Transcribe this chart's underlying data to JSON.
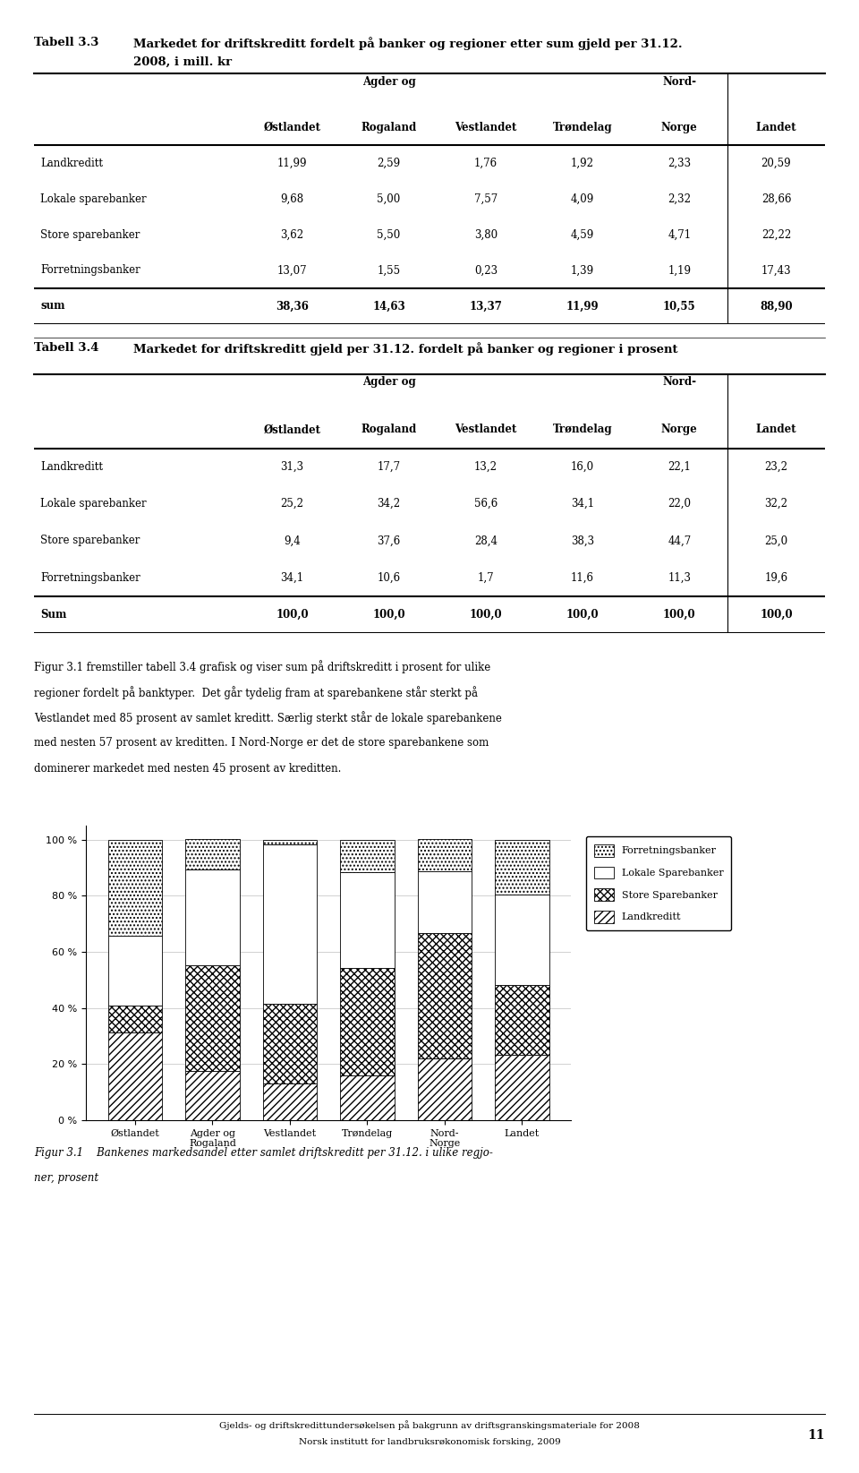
{
  "title1": "Tabell 3.3",
  "title1_desc": "Markedet for driftskreditt fordelt på banker og regioner etter sum gjeld per 31.12.",
  "title1_desc2": "2008, i mill. kr",
  "title2": "Tabell 3.4",
  "title2_desc": "Markedet for driftskreditt gjeld per 31.12. fordelt på banker og regioner i prosent",
  "rows_t1": [
    [
      "Landkreditt",
      "11,99",
      "2,59",
      "1,76",
      "1,92",
      "2,33",
      "20,59"
    ],
    [
      "Lokale sparebanker",
      "9,68",
      "5,00",
      "7,57",
      "4,09",
      "2,32",
      "28,66"
    ],
    [
      "Store sparebanker",
      "3,62",
      "5,50",
      "3,80",
      "4,59",
      "4,71",
      "22,22"
    ],
    [
      "Forretningsbanker",
      "13,07",
      "1,55",
      "0,23",
      "1,39",
      "1,19",
      "17,43"
    ],
    [
      "sum",
      "38,36",
      "14,63",
      "13,37",
      "11,99",
      "10,55",
      "88,90"
    ]
  ],
  "rows_t2": [
    [
      "Landkreditt",
      "31,3",
      "17,7",
      "13,2",
      "16,0",
      "22,1",
      "23,2"
    ],
    [
      "Lokale sparebanker",
      "25,2",
      "34,2",
      "56,6",
      "34,1",
      "22,0",
      "32,2"
    ],
    [
      "Store sparebanker",
      "9,4",
      "37,6",
      "28,4",
      "38,3",
      "44,7",
      "25,0"
    ],
    [
      "Forretningsbanker",
      "34,1",
      "10,6",
      "1,7",
      "11,6",
      "11,3",
      "19,6"
    ],
    [
      "Sum",
      "100,0",
      "100,0",
      "100,0",
      "100,0",
      "100,0",
      "100,0"
    ]
  ],
  "body_lines": [
    "Figur 3.1 fremstiller tabell 3.4 grafisk og viser sum på driftskreditt i prosent for ulike",
    "regioner fordelt på banktyper.  Det går tydelig fram at sparebankene står sterkt på",
    "Vestlandet med 85 prosent av samlet kreditt. Særlig sterkt står de lokale sparebankene",
    "med nesten 57 prosent av kreditten. I Nord-Norge er det de store sparebankene som",
    "dominerer markedet med nesten 45 prosent av kreditten."
  ],
  "chart_categories": [
    "Østlandet",
    "Agder og\nRogaland",
    "Vestlandet",
    "Trøndelag",
    "Nord-\nNorge",
    "Landet"
  ],
  "landkreditt": [
    31.3,
    17.7,
    13.2,
    16.0,
    22.1,
    23.2
  ],
  "lokale_spare": [
    25.2,
    34.2,
    56.6,
    34.1,
    22.0,
    32.2
  ],
  "store_spare": [
    9.4,
    37.6,
    28.4,
    38.3,
    44.7,
    25.0
  ],
  "forretning": [
    34.1,
    10.6,
    1.7,
    11.6,
    11.3,
    19.6
  ],
  "fig_caption_line1": "Figur 3.1    Bankenes markedsandel etter samlet driftskreditt per 31.12. i ulike regjo-",
  "fig_caption_line2": "ner, prosent",
  "footer_line1": "Gjelds- og driftskredittundersøkelsen på bakgrunn av driftsgranskingsmateriale for 2008",
  "footer_line2": "Norsk institutt for landbruksrøkonomisk forsking, 2009",
  "page_number": "11",
  "col_h1_agder": "Østlandet",
  "col_h2_agder": "Agder og",
  "col_h2_rogaland": "Rogaland",
  "col_h3": "Vestlandet",
  "col_h4": "Trøndelag",
  "col_h5_nord": "Nord-",
  "col_h5_norge": "Norge",
  "col_h6": "Landet"
}
